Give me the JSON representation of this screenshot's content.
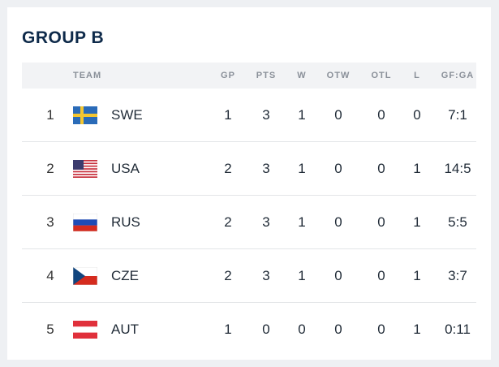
{
  "group": {
    "title": "GROUP B"
  },
  "columns": {
    "team": "TEAM",
    "gp": "GP",
    "pts": "PTS",
    "w": "W",
    "otw": "OTW",
    "otl": "OTL",
    "l": "L",
    "gfga": "GF:GA"
  },
  "rows": [
    {
      "rank": "1",
      "flag": "sweden-flag",
      "team": "SWE",
      "gp": "1",
      "pts": "3",
      "w": "1",
      "otw": "0",
      "otl": "0",
      "l": "0",
      "gfga": "7:1"
    },
    {
      "rank": "2",
      "flag": "usa-flag",
      "team": "USA",
      "gp": "2",
      "pts": "3",
      "w": "1",
      "otw": "0",
      "otl": "0",
      "l": "1",
      "gfga": "14:5"
    },
    {
      "rank": "3",
      "flag": "russia-flag",
      "team": "RUS",
      "gp": "2",
      "pts": "3",
      "w": "1",
      "otw": "0",
      "otl": "0",
      "l": "1",
      "gfga": "5:5"
    },
    {
      "rank": "4",
      "flag": "czech-flag",
      "team": "CZE",
      "gp": "2",
      "pts": "3",
      "w": "1",
      "otw": "0",
      "otl": "0",
      "l": "1",
      "gfga": "3:7"
    },
    {
      "rank": "5",
      "flag": "austria-flag",
      "team": "AUT",
      "gp": "1",
      "pts": "0",
      "w": "0",
      "otw": "0",
      "otl": "0",
      "l": "1",
      "gfga": "0:11"
    }
  ],
  "colors": {
    "title": "#0e2a4a",
    "header_bg": "#f2f3f5",
    "header_text": "#8a9099",
    "divider": "#e3e5e8"
  }
}
